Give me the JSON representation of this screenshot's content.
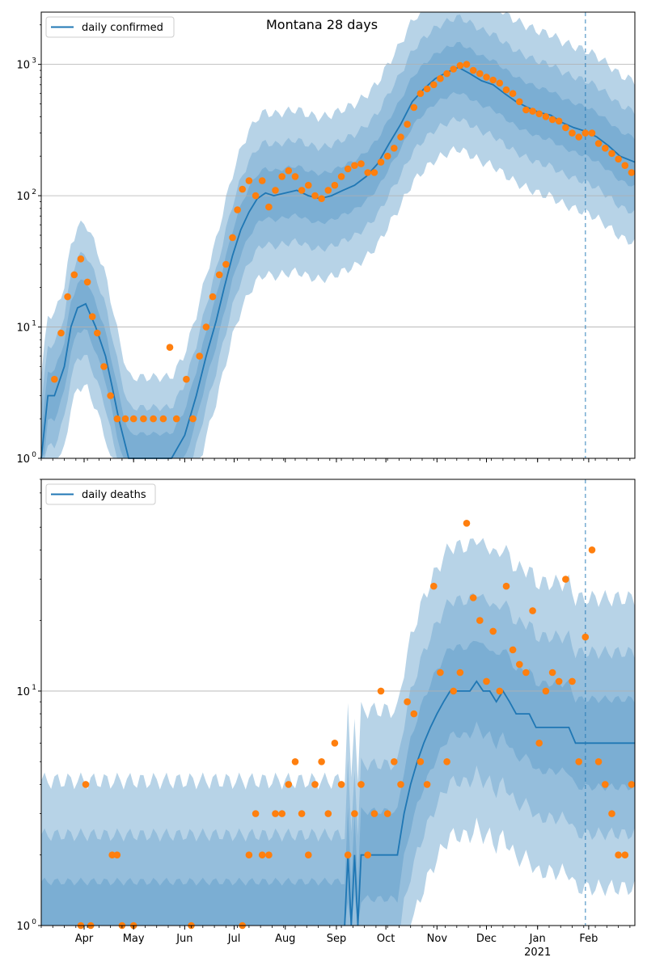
{
  "colors": {
    "line": "#1f77b4",
    "points": "#ff7f0e",
    "band": "#1f77b4",
    "grid": "#b0b0b0",
    "vline": "#1f77b4"
  },
  "x_ticks": [
    {
      "date": "2020-04-01",
      "label": "Apr"
    },
    {
      "date": "2020-05-01",
      "label": "May"
    },
    {
      "date": "2020-06-01",
      "label": "Jun"
    },
    {
      "date": "2020-07-01",
      "label": "Jul"
    },
    {
      "date": "2020-08-01",
      "label": "Aug"
    },
    {
      "date": "2020-09-01",
      "label": "Sep"
    },
    {
      "date": "2020-10-01",
      "label": "Oct"
    },
    {
      "date": "2020-11-01",
      "label": "Nov"
    },
    {
      "date": "2020-12-01",
      "label": "Dec"
    },
    {
      "date": "2021-01-01",
      "label": "Jan"
    },
    {
      "date": "2021-02-01",
      "label": "Feb"
    }
  ],
  "x_year_label": "2021",
  "chart_data": [
    {
      "type": "scatter",
      "title": "Montana 28 days",
      "yscale": "log",
      "ylim": [
        1,
        2500
      ],
      "xlim": [
        "2020-03-06",
        "2021-03-01"
      ],
      "y_tick_labels": [
        "10^0",
        "10^1",
        "10^2",
        "10^3"
      ],
      "grid": "horizontal",
      "legend": {
        "position": "top-left",
        "entries": [
          "daily confirmed"
        ]
      },
      "forecast_start": "2021-01-30",
      "series": [
        {
          "name": "daily confirmed",
          "type": "line",
          "x": [
            "2020-03-06",
            "2020-03-10",
            "2020-03-14",
            "2020-03-20",
            "2020-03-24",
            "2020-03-28",
            "2020-04-02",
            "2020-04-08",
            "2020-04-14",
            "2020-04-18",
            "2020-04-22",
            "2020-04-28",
            "2020-05-04",
            "2020-05-14",
            "2020-05-24",
            "2020-06-01",
            "2020-06-08",
            "2020-06-14",
            "2020-06-20",
            "2020-06-25",
            "2020-06-30",
            "2020-07-05",
            "2020-07-10",
            "2020-07-15",
            "2020-07-20",
            "2020-07-25",
            "2020-08-01",
            "2020-08-08",
            "2020-08-15",
            "2020-08-22",
            "2020-08-29",
            "2020-09-05",
            "2020-09-12",
            "2020-09-19",
            "2020-09-26",
            "2020-10-03",
            "2020-10-10",
            "2020-10-17",
            "2020-10-24",
            "2020-10-31",
            "2020-11-07",
            "2020-11-14",
            "2020-11-21",
            "2020-11-28",
            "2020-12-05",
            "2020-12-12",
            "2020-12-19",
            "2020-12-26",
            "2021-01-02",
            "2021-01-09",
            "2021-01-16",
            "2021-01-23",
            "2021-01-30",
            "2021-02-06",
            "2021-02-13",
            "2021-02-20",
            "2021-03-01"
          ],
          "values": [
            1,
            3,
            3,
            5,
            10,
            14,
            15,
            10,
            6,
            3.5,
            2,
            1,
            1,
            1,
            1,
            1.5,
            3,
            6,
            11,
            20,
            35,
            55,
            75,
            95,
            105,
            100,
            105,
            110,
            100,
            95,
            100,
            110,
            120,
            140,
            175,
            250,
            350,
            520,
            650,
            780,
            870,
            950,
            850,
            750,
            700,
            600,
            520,
            470,
            430,
            410,
            360,
            330,
            310,
            280,
            240,
            200,
            180
          ]
        },
        {
          "name": "",
          "type": "scatter",
          "x": [
            "2020-03-14",
            "2020-03-18",
            "2020-03-22",
            "2020-03-26",
            "2020-03-30",
            "2020-04-03",
            "2020-04-06",
            "2020-04-09",
            "2020-04-13",
            "2020-04-17",
            "2020-04-21",
            "2020-04-26",
            "2020-05-01",
            "2020-05-07",
            "2020-05-13",
            "2020-05-19",
            "2020-05-23",
            "2020-05-27",
            "2020-06-02",
            "2020-06-06",
            "2020-06-10",
            "2020-06-14",
            "2020-06-18",
            "2020-06-22",
            "2020-06-26",
            "2020-06-30",
            "2020-07-03",
            "2020-07-06",
            "2020-07-10",
            "2020-07-14",
            "2020-07-18",
            "2020-07-22",
            "2020-07-26",
            "2020-07-30",
            "2020-08-03",
            "2020-08-07",
            "2020-08-11",
            "2020-08-15",
            "2020-08-19",
            "2020-08-23",
            "2020-08-27",
            "2020-08-31",
            "2020-09-04",
            "2020-09-08",
            "2020-09-12",
            "2020-09-16",
            "2020-09-20",
            "2020-09-24",
            "2020-09-28",
            "2020-10-02",
            "2020-10-06",
            "2020-10-10",
            "2020-10-14",
            "2020-10-18",
            "2020-10-22",
            "2020-10-26",
            "2020-10-30",
            "2020-11-03",
            "2020-11-07",
            "2020-11-11",
            "2020-11-15",
            "2020-11-19",
            "2020-11-23",
            "2020-11-27",
            "2020-12-01",
            "2020-12-05",
            "2020-12-09",
            "2020-12-13",
            "2020-12-17",
            "2020-12-21",
            "2020-12-25",
            "2020-12-29",
            "2021-01-02",
            "2021-01-06",
            "2021-01-10",
            "2021-01-14",
            "2021-01-18",
            "2021-01-22",
            "2021-01-26",
            "2021-01-30",
            "2021-02-03",
            "2021-02-07",
            "2021-02-11",
            "2021-02-15",
            "2021-02-19",
            "2021-02-23",
            "2021-02-27"
          ],
          "values": [
            4,
            9,
            17,
            25,
            33,
            22,
            12,
            9,
            5,
            3,
            2,
            2,
            2,
            2,
            2,
            2,
            7,
            2,
            4,
            2,
            6,
            10,
            17,
            25,
            30,
            48,
            78,
            112,
            130,
            100,
            130,
            82,
            110,
            140,
            155,
            140,
            110,
            120,
            100,
            95,
            110,
            120,
            140,
            160,
            170,
            175,
            150,
            150,
            180,
            200,
            230,
            280,
            350,
            470,
            600,
            650,
            700,
            780,
            850,
            920,
            980,
            1000,
            900,
            850,
            800,
            760,
            720,
            640,
            600,
            520,
            450,
            440,
            420,
            400,
            380,
            370,
            330,
            300,
            280,
            300,
            300,
            250,
            230,
            210,
            190,
            170,
            150
          ]
        }
      ]
    },
    {
      "type": "scatter",
      "title": "",
      "yscale": "log",
      "ylim": [
        1,
        80
      ],
      "xlim": [
        "2020-03-06",
        "2021-03-01"
      ],
      "y_tick_labels": [
        "10^0",
        "10^1"
      ],
      "grid": "horizontal",
      "legend": {
        "position": "top-left",
        "entries": [
          "daily deaths"
        ]
      },
      "forecast_start": "2021-01-30",
      "series": [
        {
          "name": "daily deaths",
          "type": "line",
          "x": [
            "2020-09-06",
            "2020-09-08",
            "2020-09-10",
            "2020-09-12",
            "2020-09-14",
            "2020-09-16",
            "2020-09-18",
            "2020-09-20",
            "2020-09-24",
            "2020-10-01",
            "2020-10-08",
            "2020-10-12",
            "2020-10-16",
            "2020-10-20",
            "2020-10-24",
            "2020-10-28",
            "2020-11-01",
            "2020-11-05",
            "2020-11-09",
            "2020-11-13",
            "2020-11-17",
            "2020-11-21",
            "2020-11-25",
            "2020-11-29",
            "2020-12-03",
            "2020-12-07",
            "2020-12-11",
            "2020-12-15",
            "2020-12-19",
            "2020-12-23",
            "2020-12-27",
            "2020-12-31",
            "2021-01-04",
            "2021-01-08",
            "2021-01-12",
            "2021-01-16",
            "2021-01-20",
            "2021-01-24",
            "2021-01-28",
            "2021-02-01",
            "2021-02-05",
            "2021-02-09",
            "2021-02-13",
            "2021-02-17",
            "2021-02-21",
            "2021-02-25",
            "2021-03-01"
          ],
          "values": [
            1,
            2,
            1,
            2,
            1,
            2,
            2,
            2,
            2,
            2,
            2,
            3,
            4,
            5,
            6,
            7,
            8,
            9,
            10,
            10,
            10,
            10,
            11,
            10,
            10,
            9,
            10,
            9,
            8,
            8,
            8,
            7,
            7,
            7,
            7,
            7,
            7,
            6,
            6,
            6,
            6,
            6,
            6,
            6,
            6,
            6,
            6
          ]
        },
        {
          "name": "",
          "type": "scatter",
          "x": [
            "2020-03-30",
            "2020-04-02",
            "2020-04-05",
            "2020-04-18",
            "2020-04-21",
            "2020-04-24",
            "2020-05-01",
            "2020-06-05",
            "2020-07-06",
            "2020-07-10",
            "2020-07-14",
            "2020-07-18",
            "2020-07-22",
            "2020-07-26",
            "2020-07-30",
            "2020-08-03",
            "2020-08-07",
            "2020-08-11",
            "2020-08-15",
            "2020-08-19",
            "2020-08-23",
            "2020-08-27",
            "2020-08-31",
            "2020-09-04",
            "2020-09-08",
            "2020-09-12",
            "2020-09-16",
            "2020-09-20",
            "2020-09-24",
            "2020-09-28",
            "2020-10-02",
            "2020-10-06",
            "2020-10-10",
            "2020-10-14",
            "2020-10-18",
            "2020-10-22",
            "2020-10-26",
            "2020-10-30",
            "2020-11-03",
            "2020-11-07",
            "2020-11-11",
            "2020-11-15",
            "2020-11-19",
            "2020-11-23",
            "2020-11-27",
            "2020-12-01",
            "2020-12-05",
            "2020-12-09",
            "2020-12-13",
            "2020-12-17",
            "2020-12-21",
            "2020-12-25",
            "2020-12-29",
            "2021-01-02",
            "2021-01-06",
            "2021-01-10",
            "2021-01-14",
            "2021-01-18",
            "2021-01-22",
            "2021-01-26",
            "2021-01-30",
            "2021-02-03",
            "2021-02-07",
            "2021-02-11",
            "2021-02-15",
            "2021-02-19",
            "2021-02-23",
            "2021-02-27"
          ],
          "values": [
            1,
            4,
            1,
            2,
            2,
            1,
            1,
            1,
            1,
            2,
            3,
            2,
            2,
            3,
            3,
            4,
            5,
            3,
            2,
            4,
            5,
            3,
            6,
            4,
            2,
            3,
            4,
            2,
            3,
            10,
            3,
            5,
            4,
            9,
            8,
            5,
            4,
            28,
            12,
            5,
            10,
            12,
            52,
            25,
            20,
            11,
            18,
            10,
            28,
            15,
            13,
            12,
            22,
            6,
            10,
            12,
            11,
            30,
            11,
            5,
            17,
            40,
            5,
            4,
            3,
            2,
            2,
            4
          ]
        }
      ]
    }
  ]
}
